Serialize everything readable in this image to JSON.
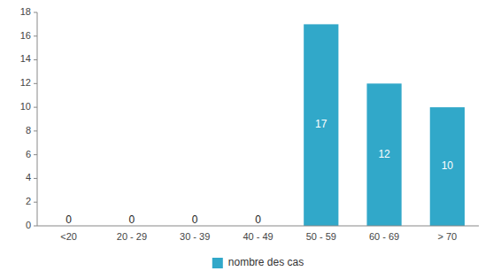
{
  "chart_data": {
    "type": "bar",
    "categories": [
      "<20",
      "20 - 29",
      "30 - 39",
      "40 - 49",
      "50 - 59",
      "60 - 69",
      "> 70"
    ],
    "series": [
      {
        "name": "nombre des cas",
        "color": "#31A8C9",
        "values": [
          0,
          0,
          0,
          0,
          17,
          12,
          10
        ]
      }
    ],
    "ylim": [
      0,
      18
    ],
    "yticks": [
      0,
      2,
      4,
      6,
      8,
      10,
      12,
      14,
      16,
      18
    ],
    "grid": false,
    "legend": "bottom",
    "data_labels": true
  }
}
